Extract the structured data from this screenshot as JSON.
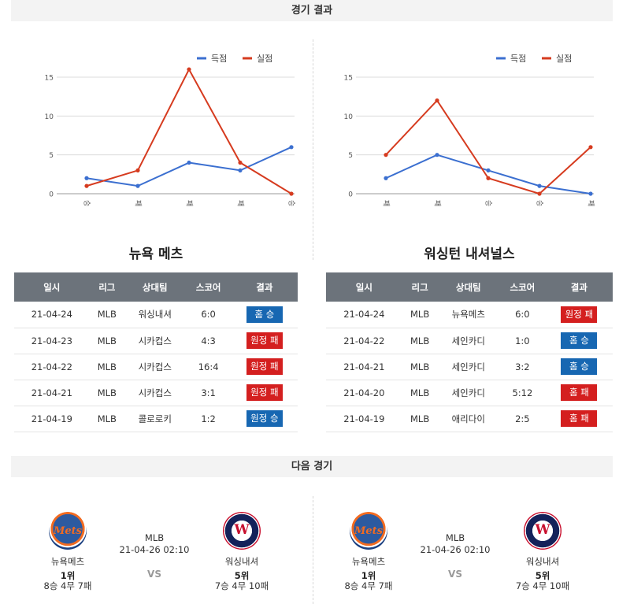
{
  "results_header": "경기 결과",
  "next_header": "다음 경기",
  "legend": {
    "scored": "득점",
    "conceded": "실점",
    "scored_color": "#3b6fd0",
    "conceded_color": "#d63b1f"
  },
  "chart_data": [
    {
      "type": "line",
      "categories": [
        "승",
        "패",
        "패",
        "패",
        "승"
      ],
      "yticks": [
        0,
        5,
        10,
        15
      ],
      "ylim": [
        0,
        15
      ],
      "series": [
        {
          "name": "득점",
          "values": [
            2,
            1,
            4,
            3,
            6
          ]
        },
        {
          "name": "실점",
          "values": [
            1,
            3,
            16,
            4,
            0
          ]
        }
      ],
      "legend_position": "top-right",
      "grid": true
    },
    {
      "type": "line",
      "categories": [
        "패",
        "패",
        "승",
        "승",
        "패"
      ],
      "yticks": [
        0,
        5,
        10,
        15
      ],
      "ylim": [
        0,
        15
      ],
      "series": [
        {
          "name": "득점",
          "values": [
            2,
            5,
            3,
            1,
            0
          ]
        },
        {
          "name": "실점",
          "values": [
            5,
            12,
            2,
            0,
            6
          ]
        }
      ],
      "legend_position": "top-right",
      "grid": true
    }
  ],
  "tables": [
    {
      "team": "뉴욕 메츠",
      "headers": [
        "일시",
        "리그",
        "상대팀",
        "스코어",
        "결과"
      ],
      "rows": [
        {
          "date": "21-04-24",
          "league": "MLB",
          "opp": "워싱내셔",
          "score": "6:0",
          "result": "홈 승",
          "win": true
        },
        {
          "date": "21-04-23",
          "league": "MLB",
          "opp": "시카컵스",
          "score": "4:3",
          "result": "원정 패",
          "win": false
        },
        {
          "date": "21-04-22",
          "league": "MLB",
          "opp": "시카컵스",
          "score": "16:4",
          "result": "원정 패",
          "win": false
        },
        {
          "date": "21-04-21",
          "league": "MLB",
          "opp": "시카컵스",
          "score": "3:1",
          "result": "원정 패",
          "win": false
        },
        {
          "date": "21-04-19",
          "league": "MLB",
          "opp": "콜로로키",
          "score": "1:2",
          "result": "원정 승",
          "win": true
        }
      ]
    },
    {
      "team": "워싱턴 내셔널스",
      "headers": [
        "일시",
        "리그",
        "상대팀",
        "스코어",
        "결과"
      ],
      "rows": [
        {
          "date": "21-04-24",
          "league": "MLB",
          "opp": "뉴욕메츠",
          "score": "6:0",
          "result": "원정 패",
          "win": false
        },
        {
          "date": "21-04-22",
          "league": "MLB",
          "opp": "세인카디",
          "score": "1:0",
          "result": "홈 승",
          "win": true
        },
        {
          "date": "21-04-21",
          "league": "MLB",
          "opp": "세인카디",
          "score": "3:2",
          "result": "홈 승",
          "win": true
        },
        {
          "date": "21-04-20",
          "league": "MLB",
          "opp": "세인카디",
          "score": "5:12",
          "result": "홈 패",
          "win": false
        },
        {
          "date": "21-04-19",
          "league": "MLB",
          "opp": "애리다이",
          "score": "2:5",
          "result": "홈 패",
          "win": false
        }
      ]
    }
  ],
  "matches": [
    {
      "league": "MLB",
      "datetime": "21-04-26 02:10",
      "vs": "VS",
      "home": {
        "name": "뉴욕메츠",
        "rank": "1위",
        "record": "8승 4무 7패",
        "logo": "mets-logo",
        "logo_text": "Mets"
      },
      "away": {
        "name": "워싱내셔",
        "rank": "5위",
        "record": "7승 4무 10패",
        "logo": "nationals-logo",
        "logo_text": "W"
      }
    },
    {
      "league": "MLB",
      "datetime": "21-04-26 02:10",
      "vs": "VS",
      "home": {
        "name": "뉴욕메츠",
        "rank": "1위",
        "record": "8승 4무 7패",
        "logo": "mets-logo",
        "logo_text": "Mets"
      },
      "away": {
        "name": "워싱내셔",
        "rank": "5위",
        "record": "7승 4무 10패",
        "logo": "nationals-logo",
        "logo_text": "W"
      }
    }
  ]
}
